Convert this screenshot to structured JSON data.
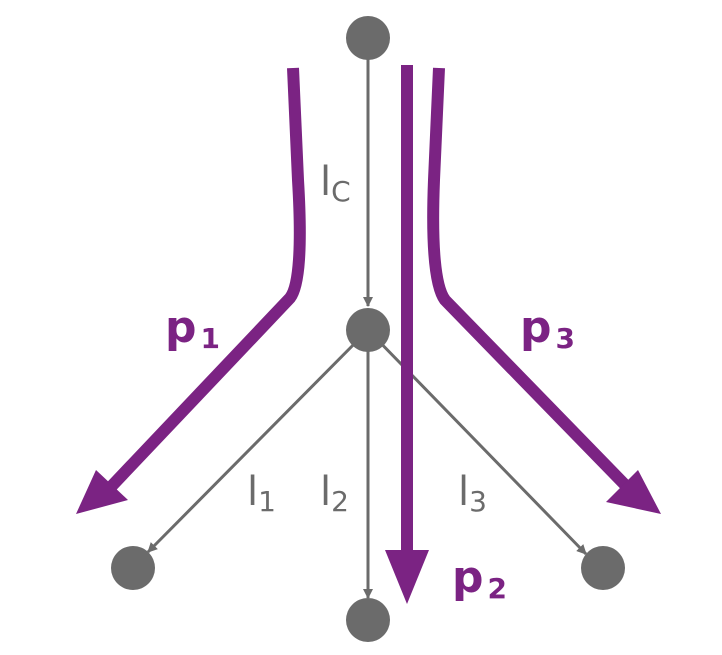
{
  "colors": {
    "link": "#6b6b6b",
    "node": "#6b6b6b",
    "path": "#7b2383",
    "background": "#ffffff"
  },
  "links": {
    "lc": {
      "base": "l",
      "sub": "C"
    },
    "l1": {
      "base": "l",
      "sub": "1"
    },
    "l2": {
      "base": "l",
      "sub": "2"
    },
    "l3": {
      "base": "l",
      "sub": "3"
    }
  },
  "paths": {
    "p1": {
      "base": "p",
      "sub": "1"
    },
    "p2": {
      "base": "p",
      "sub": "2"
    },
    "p3": {
      "base": "p",
      "sub": "3"
    }
  },
  "nodes": [
    "source",
    "junction",
    "sink-1",
    "sink-2",
    "sink-3"
  ]
}
